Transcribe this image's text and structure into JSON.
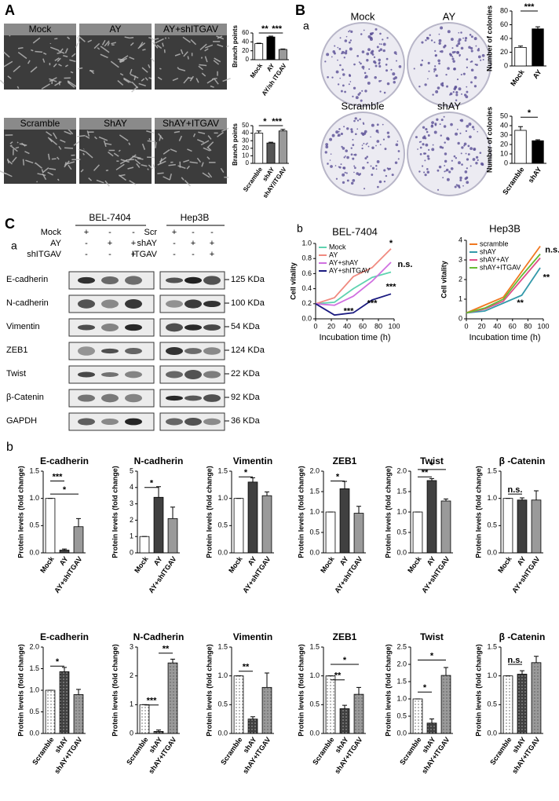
{
  "panel_A": {
    "label": "A",
    "images": [
      "Mock",
      "AY",
      "AY+shITGAV",
      "Scramble",
      "ShAY",
      "ShAY+ITGAV"
    ]
  },
  "panel_B": {
    "label": "B",
    "sub": "a",
    "images": [
      "Mock",
      "AY",
      "Scramble",
      "shAY"
    ]
  },
  "panel_C": {
    "label": "C",
    "sub_a": "a",
    "sub_b": "b",
    "cell_lines": [
      "BEL-7404",
      "Hep3B"
    ],
    "conditions_left": [
      {
        "name": "Mock",
        "signs": [
          "+",
          "-",
          "-"
        ]
      },
      {
        "name": "AY",
        "signs": [
          "-",
          "+",
          "+"
        ]
      },
      {
        "name": "shITGAV",
        "signs": [
          "-",
          "-",
          "+"
        ]
      }
    ],
    "conditions_right": [
      {
        "name": "Scr",
        "signs": [
          "+",
          "-",
          "-"
        ]
      },
      {
        "name": "shAY",
        "signs": [
          "-",
          "+",
          "+"
        ]
      },
      {
        "name": "ITGAV",
        "signs": [
          "-",
          "-",
          "+"
        ]
      }
    ],
    "proteins": [
      "E-cadherin",
      "N-cadherin",
      "Vimentin",
      "ZEB1",
      "Twist",
      "β-Catenin",
      "GAPDH"
    ],
    "sizes": [
      "125 KDa",
      "100 KDa",
      "54 KDa",
      "124 KDa",
      "22 KDa",
      "92 KDa",
      "36 KDa"
    ]
  },
  "panel_b": {
    "label": "b"
  },
  "chart_data": [
    {
      "type": "bar",
      "ylabel": "Branch points",
      "categories": [
        "Mock",
        "AY",
        "AY/sh ITGAV"
      ],
      "values": [
        36,
        51,
        23
      ],
      "errors": [
        1,
        2,
        1
      ],
      "colors": [
        "#ffffff",
        "#000000",
        "#9a9a9a"
      ],
      "ylim": [
        0,
        60
      ],
      "yticks": [
        0,
        20,
        40,
        60
      ],
      "annotations": [
        "**",
        "***"
      ]
    },
    {
      "type": "bar",
      "ylabel": "Branch points",
      "categories": [
        "Scramble",
        "shAY",
        "shAY/ITGAV"
      ],
      "values": [
        40,
        27,
        43
      ],
      "errors": [
        3,
        1,
        2
      ],
      "colors": [
        "#ffffff",
        "#555555",
        "#9a9a9a"
      ],
      "ylim": [
        0,
        50
      ],
      "yticks": [
        0,
        10,
        20,
        30,
        40,
        50
      ],
      "annotations": [
        "*",
        "***"
      ]
    },
    {
      "type": "bar",
      "ylabel": "Number of colonies",
      "categories": [
        "Mock",
        "AY"
      ],
      "values": [
        27,
        54
      ],
      "errors": [
        2,
        3
      ],
      "colors": [
        "#ffffff",
        "#000000"
      ],
      "ylim": [
        0,
        80
      ],
      "yticks": [
        0,
        20,
        40,
        60,
        80
      ],
      "annotations": [
        "***"
      ]
    },
    {
      "type": "bar",
      "ylabel": "Number of colonies",
      "categories": [
        "Scramble",
        "shAY"
      ],
      "values": [
        35,
        24
      ],
      "errors": [
        4,
        1
      ],
      "colors": [
        "#ffffff",
        "#000000"
      ],
      "ylim": [
        0,
        50
      ],
      "yticks": [
        0,
        10,
        20,
        30,
        40,
        50
      ],
      "annotations": [
        "*"
      ]
    },
    {
      "type": "line",
      "title": "BEL-7404",
      "xlabel": "Incubation time (h)",
      "ylabel": "Cell vitality",
      "x": [
        0,
        24,
        48,
        72,
        96
      ],
      "xlim": [
        0,
        100
      ],
      "xticks": [
        0,
        20,
        40,
        60,
        80,
        100
      ],
      "ylim": [
        0,
        1
      ],
      "yticks": [
        {
          "value": 0,
          "label": "0.0"
        },
        0.2,
        0.4,
        0.6,
        0.8,
        {
          "value": 1,
          "label": "1.0"
        }
      ],
      "legend": "upper left",
      "series": [
        {
          "name": "Mock",
          "color": "#5fd3b0",
          "values": [
            0.2,
            0.22,
            0.4,
            0.55,
            0.62
          ]
        },
        {
          "name": "AY",
          "color": "#f08a80",
          "values": [
            0.2,
            0.28,
            0.56,
            0.68,
            0.93
          ]
        },
        {
          "name": "AY+shAY",
          "color": "#d070e0",
          "values": [
            0.2,
            0.18,
            0.3,
            0.5,
            0.75
          ]
        },
        {
          "name": "AY+shITGAV",
          "color": "#1a1a80",
          "values": [
            0.2,
            0.05,
            0.08,
            0.25,
            0.33
          ]
        }
      ],
      "annotations": [
        "*",
        "***",
        "***",
        "***",
        "n.s."
      ]
    },
    {
      "type": "line",
      "title": "Hep3B",
      "xlabel": "Incubation time (h)",
      "ylabel": "Cell vitality",
      "x": [
        0,
        24,
        48,
        72,
        96
      ],
      "xlim": [
        0,
        100
      ],
      "xticks": [
        0,
        20,
        40,
        60,
        80,
        100
      ],
      "ylim": [
        0,
        4
      ],
      "yticks": [
        0,
        1,
        2,
        3,
        4
      ],
      "legend": "upper left",
      "series": [
        {
          "name": "scramble",
          "color": "#f07820",
          "values": [
            0.3,
            0.7,
            1.1,
            2.4,
            3.7
          ]
        },
        {
          "name": "shAY",
          "color": "#3399aa",
          "values": [
            0.3,
            0.4,
            0.8,
            1.2,
            2.6
          ]
        },
        {
          "name": "shAY+AY",
          "color": "#e0508a",
          "values": [
            0.3,
            0.5,
            0.9,
            2.0,
            3.1
          ]
        },
        {
          "name": "shAY+ITGAV",
          "color": "#66bb33",
          "values": [
            0.3,
            0.55,
            1.0,
            2.2,
            3.3
          ]
        }
      ],
      "annotations": [
        "**",
        "**",
        "n.s."
      ]
    },
    {
      "type": "bar",
      "title": "E-cadherin",
      "ylabel": "Protein levels (fold change)",
      "categories": [
        "Mock",
        "AY",
        "AY+shITGAV"
      ],
      "values": [
        1,
        0.05,
        0.48
      ],
      "errors": [
        0,
        0.02,
        0.15
      ],
      "colors": [
        "#ffffff",
        "#404040",
        "#9a9a9a"
      ],
      "ylim": [
        0,
        1.5
      ],
      "yticks": [
        {
          "value": 0,
          "label": "0.0"
        },
        0.5,
        {
          "value": 1,
          "label": "1.0"
        },
        1.5
      ],
      "annotations": [
        "***",
        "*"
      ]
    },
    {
      "type": "bar",
      "title": "N-cadherin",
      "ylabel": "Protein levels (fold change)",
      "categories": [
        "Mock",
        "AY",
        "AY+shITGAV"
      ],
      "values": [
        1,
        3.4,
        2.1
      ],
      "errors": [
        0,
        0.65,
        0.7
      ],
      "colors": [
        "#ffffff",
        "#404040",
        "#9a9a9a"
      ],
      "ylim": [
        0,
        5
      ],
      "yticks": [
        0,
        1,
        2,
        3,
        4,
        5
      ],
      "annotations": [
        "*"
      ]
    },
    {
      "type": "bar",
      "title": "Vimentin",
      "ylabel": "Protein levels (fold change)",
      "categories": [
        "Mock",
        "AY",
        "AY+shITGAV"
      ],
      "values": [
        1,
        1.3,
        1.05
      ],
      "errors": [
        0,
        0.08,
        0.07
      ],
      "colors": [
        "#ffffff",
        "#404040",
        "#9a9a9a"
      ],
      "ylim": [
        0,
        1.5
      ],
      "yticks": [
        {
          "value": 0,
          "label": "0.0"
        },
        0.5,
        {
          "value": 1,
          "label": "1.0"
        },
        1.5
      ],
      "annotations": [
        "*"
      ]
    },
    {
      "type": "bar",
      "title": "ZEB1",
      "ylabel": "Protein levels (fold change)",
      "categories": [
        "Mock",
        "AY",
        "AY+shITGAV"
      ],
      "values": [
        1,
        1.57,
        0.97
      ],
      "errors": [
        0,
        0.18,
        0.17
      ],
      "colors": [
        "#ffffff",
        "#404040",
        "#9a9a9a"
      ],
      "ylim": [
        0,
        2
      ],
      "yticks": [
        {
          "value": 0,
          "label": "0.0"
        },
        0.5,
        {
          "value": 1,
          "label": "1.0"
        },
        1.5,
        {
          "value": 2,
          "label": "2.0"
        }
      ],
      "annotations": [
        "*"
      ]
    },
    {
      "type": "bar",
      "title": "Twist",
      "ylabel": "Protein levels (fold change)",
      "categories": [
        "Mock",
        "AY",
        "AY+shITGAV"
      ],
      "values": [
        1,
        1.77,
        1.27
      ],
      "errors": [
        0,
        0.05,
        0.05
      ],
      "colors": [
        "#ffffff",
        "#404040",
        "#9a9a9a"
      ],
      "ylim": [
        0,
        2
      ],
      "yticks": [
        {
          "value": 0,
          "label": "0.0"
        },
        0.5,
        {
          "value": 1,
          "label": "1.0"
        },
        1.5,
        {
          "value": 2,
          "label": "2.0"
        }
      ],
      "annotations": [
        "**",
        "*"
      ]
    },
    {
      "type": "bar",
      "title": "β -Catenin",
      "ylabel": "Protein levels (fold change)",
      "categories": [
        "Mock",
        "AY",
        "AY+shITGAV"
      ],
      "values": [
        1,
        0.97,
        0.97
      ],
      "errors": [
        0,
        0.04,
        0.17
      ],
      "colors": [
        "#ffffff",
        "#404040",
        "#9a9a9a"
      ],
      "ylim": [
        0,
        1.5
      ],
      "yticks": [
        {
          "value": 0,
          "label": "0.0"
        },
        0.5,
        {
          "value": 1,
          "label": "1.0"
        },
        1.5
      ],
      "annotations": [
        "n.s."
      ]
    },
    {
      "type": "bar",
      "title": "E-cadherin",
      "ylabel": "Protein levels (fold change)",
      "categories": [
        "Scramble",
        "shAY",
        "shAY+ITGAV"
      ],
      "values": [
        1,
        1.43,
        0.9
      ],
      "errors": [
        0,
        0.1,
        0.12
      ],
      "colors": [
        "#ffffff",
        "#404040",
        "#9a9a9a"
      ],
      "pattern": "dots",
      "ylim": [
        0,
        2
      ],
      "yticks": [
        {
          "value": 0,
          "label": "0.0"
        },
        0.5,
        {
          "value": 1,
          "label": "1.0"
        },
        1.5,
        {
          "value": 2,
          "label": "2.0"
        }
      ],
      "annotations": [
        "*"
      ]
    },
    {
      "type": "bar",
      "title": "N-Cadherin",
      "ylabel": "Protein levels (fold change)",
      "categories": [
        "Scramble",
        "shAY",
        "shAY+ITGAV"
      ],
      "values": [
        1,
        0.07,
        2.45
      ],
      "errors": [
        0,
        0.05,
        0.13
      ],
      "colors": [
        "#ffffff",
        "#404040",
        "#9a9a9a"
      ],
      "pattern": "dots",
      "ylim": [
        0,
        3
      ],
      "yticks": [
        0,
        1,
        2,
        3
      ],
      "annotations": [
        "***",
        "**"
      ]
    },
    {
      "type": "bar",
      "title": "Vimentin",
      "ylabel": "Protein levels (fold change)",
      "categories": [
        "Scramble",
        "shAY",
        "shAY+ITGAV"
      ],
      "values": [
        1,
        0.25,
        0.8
      ],
      "errors": [
        0,
        0.04,
        0.25
      ],
      "colors": [
        "#ffffff",
        "#404040",
        "#9a9a9a"
      ],
      "pattern": "dots",
      "ylim": [
        0,
        1.5
      ],
      "yticks": [
        {
          "value": 0,
          "label": "0.0"
        },
        0.5,
        {
          "value": 1,
          "label": "1.0"
        },
        1.5
      ],
      "annotations": [
        "**"
      ]
    },
    {
      "type": "bar",
      "title": "ZEB1",
      "ylabel": "Protein levels (fold change)",
      "categories": [
        "Scramble",
        "shAY",
        "shAY+ITGAV"
      ],
      "values": [
        1,
        0.43,
        0.68
      ],
      "errors": [
        0,
        0.06,
        0.12
      ],
      "colors": [
        "#ffffff",
        "#404040",
        "#9a9a9a"
      ],
      "pattern": "dots",
      "ylim": [
        0,
        1.5
      ],
      "yticks": [
        {
          "value": 0,
          "label": "0.0"
        },
        0.5,
        {
          "value": 1,
          "label": "1.0"
        },
        1.5
      ],
      "annotations": [
        "**",
        "*"
      ]
    },
    {
      "type": "bar",
      "title": "Twist",
      "ylabel": "Protein levels (fold change)",
      "categories": [
        "Scramble",
        "shAY",
        "shAY+ITGAV"
      ],
      "values": [
        1,
        0.3,
        1.68
      ],
      "errors": [
        0,
        0.12,
        0.23
      ],
      "colors": [
        "#ffffff",
        "#404040",
        "#9a9a9a"
      ],
      "pattern": "dots",
      "ylim": [
        0,
        2.5
      ],
      "yticks": [
        {
          "value": 0,
          "label": "0.0"
        },
        0.5,
        {
          "value": 1,
          "label": "1.0"
        },
        1.5,
        {
          "value": 2,
          "label": "2.0"
        },
        2.5
      ],
      "annotations": [
        "*",
        "*"
      ]
    },
    {
      "type": "bar",
      "title": "β -Catenin",
      "ylabel": "Protein levels (fold change)",
      "categories": [
        "Scramble",
        "shAY",
        "shAY+ITGAV"
      ],
      "values": [
        1,
        1.03,
        1.23
      ],
      "errors": [
        0,
        0.06,
        0.11
      ],
      "colors": [
        "#ffffff",
        "#404040",
        "#9a9a9a"
      ],
      "pattern": "dots",
      "ylim": [
        0,
        1.5
      ],
      "yticks": [
        {
          "value": 0,
          "label": "0.0"
        },
        0.5,
        {
          "value": 1,
          "label": "1.0"
        },
        1.5
      ],
      "annotations": [
        "n.s."
      ]
    }
  ]
}
